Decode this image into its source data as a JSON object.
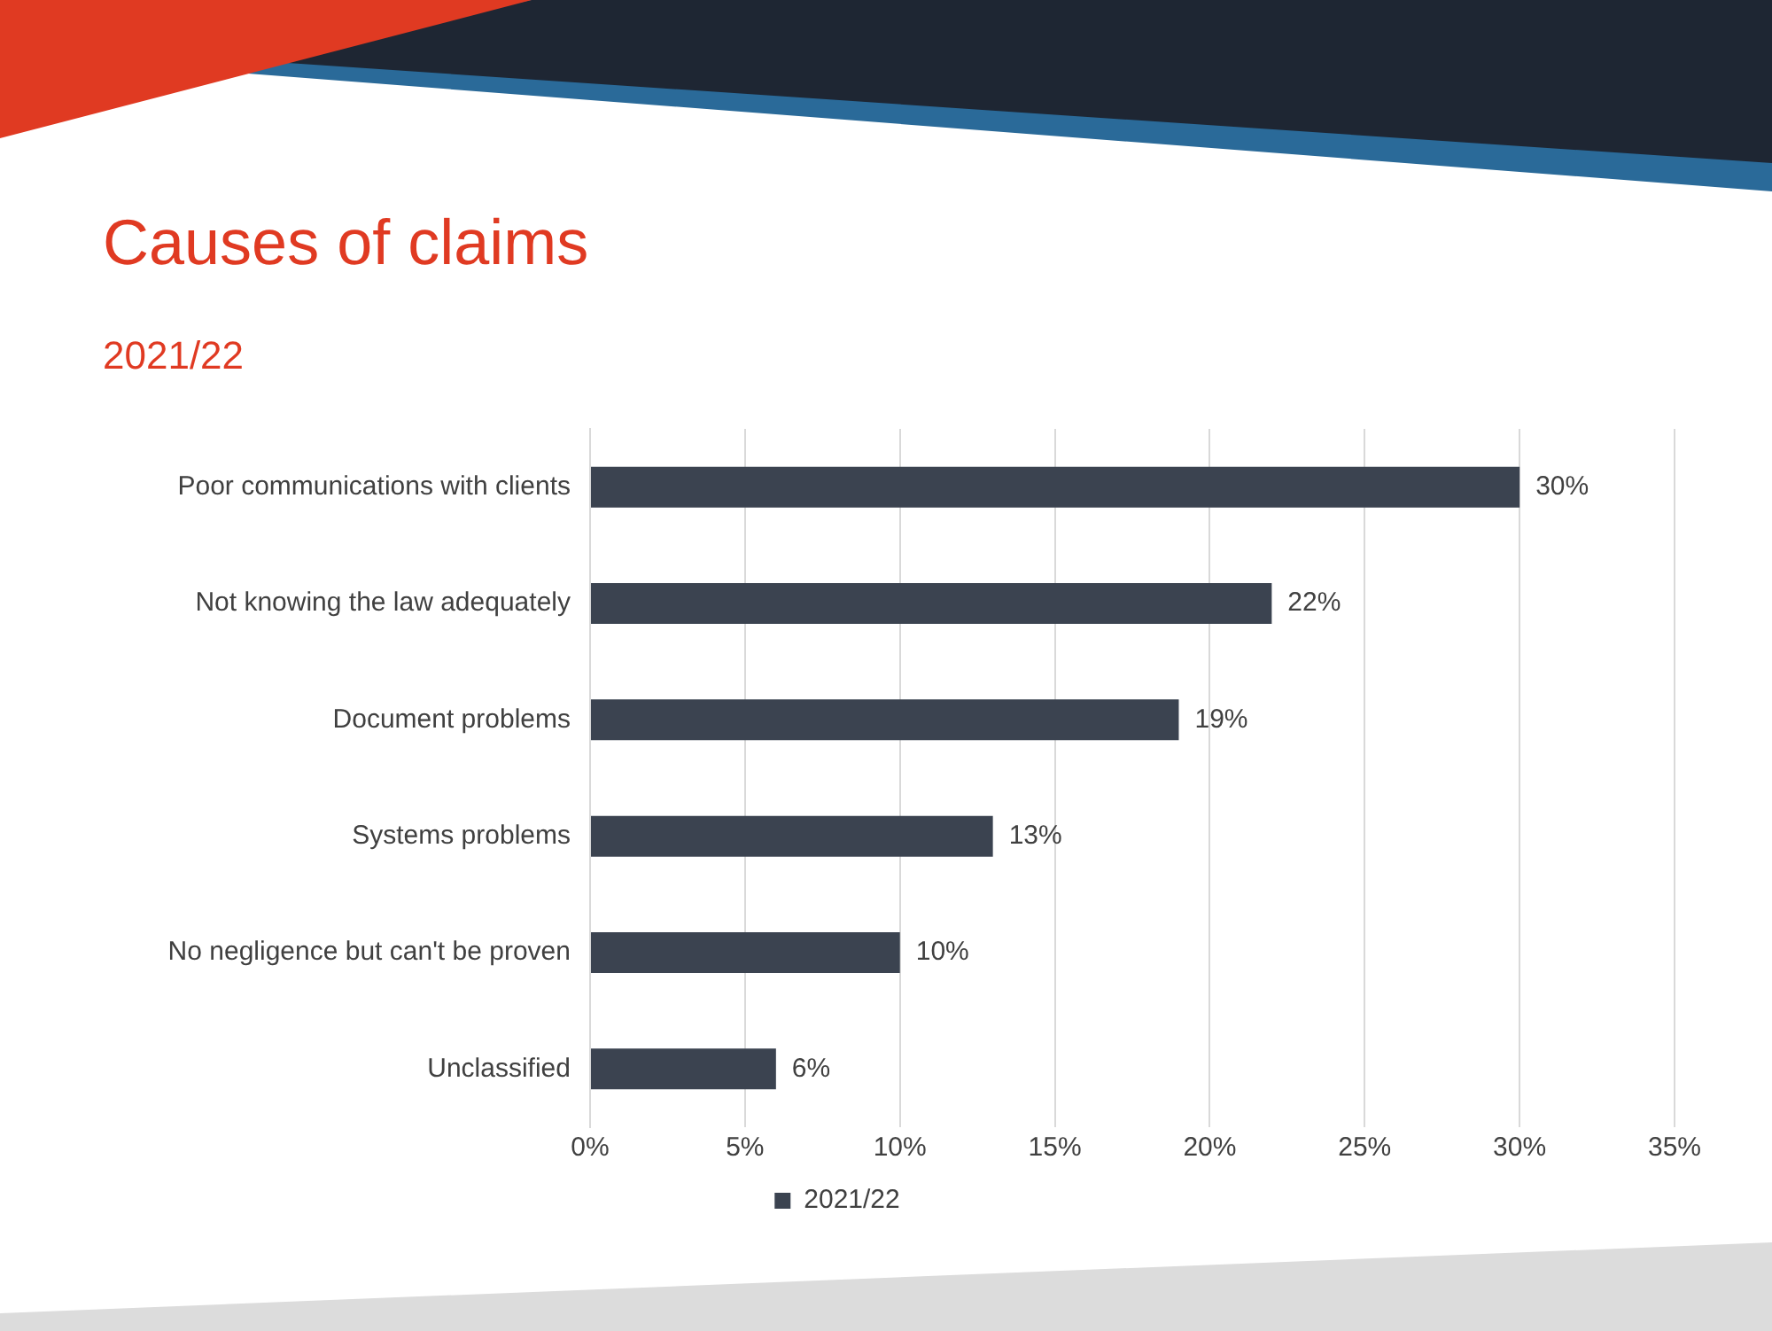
{
  "chart_data": {
    "type": "bar",
    "orientation": "horizontal",
    "title": "Causes of claims",
    "subtitle": "2021/22",
    "categories": [
      "Poor communications with clients",
      "Not knowing the law adequately",
      "Document problems",
      "Systems problems",
      "No negligence but can't be proven",
      "Unclassified"
    ],
    "series": [
      {
        "name": "2021/22",
        "color": "#3b4350",
        "values": [
          30,
          22,
          19,
          13,
          10,
          6
        ],
        "value_labels": [
          "30%",
          "22%",
          "19%",
          "13%",
          "10%",
          "6%"
        ]
      }
    ],
    "xlim": [
      0,
      35
    ],
    "xticks": [
      {
        "value": 0,
        "label": "0%"
      },
      {
        "value": 5,
        "label": "5%"
      },
      {
        "value": 10,
        "label": "10%"
      },
      {
        "value": 15,
        "label": "15%"
      },
      {
        "value": 20,
        "label": "20%"
      },
      {
        "value": 25,
        "label": "25%"
      },
      {
        "value": 30,
        "label": "30%"
      },
      {
        "value": 35,
        "label": "35%"
      }
    ],
    "grid": "x",
    "legend": "bottom"
  }
}
